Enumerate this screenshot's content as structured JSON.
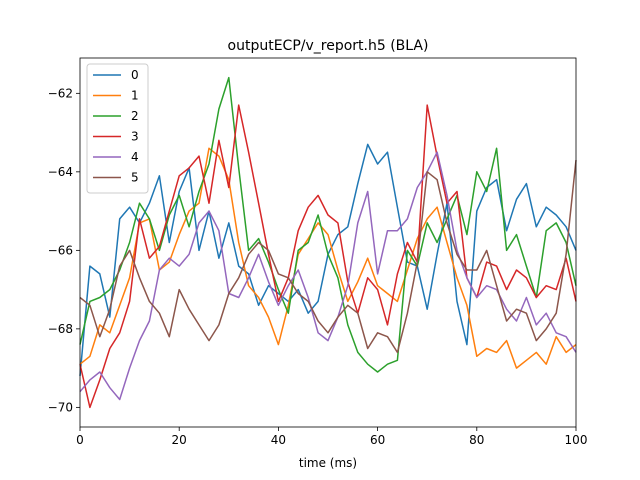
{
  "chart_data": {
    "type": "line",
    "title": "outputECP/v_report.h5 (BLA)",
    "xlabel": "time (ms)",
    "ylabel": "",
    "xlim": [
      0,
      100
    ],
    "ylim": [
      -70.5,
      -61.1
    ],
    "xticks": [
      0,
      20,
      40,
      60,
      80,
      100
    ],
    "yticks": [
      -70,
      -68,
      -66,
      -64,
      -62
    ],
    "xtick_labels": [
      "0",
      "20",
      "40",
      "60",
      "80",
      "100"
    ],
    "ytick_labels": [
      "−70",
      "−68",
      "−66",
      "−64",
      "−62"
    ],
    "grid": false,
    "legend_position": "upper-left",
    "x": [
      0,
      2,
      4,
      6,
      8,
      10,
      12,
      14,
      16,
      18,
      20,
      22,
      24,
      26,
      28,
      30,
      32,
      34,
      36,
      38,
      40,
      42,
      44,
      46,
      48,
      50,
      52,
      54,
      56,
      58,
      60,
      62,
      64,
      66,
      68,
      70,
      72,
      74,
      76,
      78,
      80,
      82,
      84,
      86,
      88,
      90,
      92,
      94,
      96,
      98,
      100
    ],
    "series": [
      {
        "name": "0",
        "color": "#1f77b4",
        "values": [
          -69.2,
          -66.4,
          -66.6,
          -67.7,
          -65.2,
          -64.9,
          -65.3,
          -64.8,
          -64.1,
          -65.8,
          -64.5,
          -63.9,
          -66.0,
          -65.0,
          -66.2,
          -65.3,
          -66.4,
          -66.6,
          -67.4,
          -66.9,
          -67.1,
          -67.3,
          -67.0,
          -67.6,
          -67.3,
          -66.1,
          -65.6,
          -65.4,
          -64.3,
          -63.3,
          -63.8,
          -63.5,
          -64.9,
          -66.3,
          -66.4,
          -67.5,
          -66.1,
          -64.8,
          -67.3,
          -68.4,
          -65.0,
          -64.4,
          -64.2,
          -65.5,
          -64.7,
          -64.3,
          -65.4,
          -64.9,
          -65.1,
          -65.4,
          -66.0
        ]
      },
      {
        "name": "1",
        "color": "#ff7f0e",
        "values": [
          -68.9,
          -68.7,
          -67.9,
          -68.1,
          -67.4,
          -66.7,
          -65.3,
          -65.2,
          -66.5,
          -66.3,
          -65.6,
          -65.0,
          -64.8,
          -63.4,
          -63.6,
          -64.2,
          -65.8,
          -66.9,
          -67.2,
          -67.7,
          -68.4,
          -67.4,
          -66.1,
          -65.7,
          -65.3,
          -65.6,
          -66.5,
          -67.3,
          -66.8,
          -66.2,
          -66.9,
          -67.1,
          -67.3,
          -66.5,
          -65.7,
          -65.2,
          -64.9,
          -65.8,
          -66.7,
          -67.4,
          -68.7,
          -68.5,
          -68.6,
          -68.3,
          -69.0,
          -68.8,
          -68.6,
          -68.9,
          -68.2,
          -68.6,
          -68.4
        ]
      },
      {
        "name": "2",
        "color": "#2ca02c",
        "values": [
          -68.4,
          -67.3,
          -67.2,
          -67.0,
          -66.5,
          -65.8,
          -64.8,
          -65.2,
          -66.0,
          -65.1,
          -64.6,
          -65.4,
          -64.5,
          -63.8,
          -62.4,
          -61.6,
          -63.9,
          -66.0,
          -65.7,
          -66.3,
          -67.0,
          -67.6,
          -66.0,
          -65.8,
          -65.1,
          -66.1,
          -66.7,
          -67.9,
          -68.6,
          -68.9,
          -69.1,
          -68.9,
          -68.8,
          -66.0,
          -66.4,
          -65.3,
          -65.8,
          -65.2,
          -64.6,
          -65.6,
          -64.0,
          -64.5,
          -63.4,
          -66.0,
          -65.6,
          -66.4,
          -67.2,
          -65.5,
          -65.3,
          -65.8,
          -66.9
        ]
      },
      {
        "name": "3",
        "color": "#d62728",
        "values": [
          -68.9,
          -70.0,
          -69.3,
          -68.5,
          -68.1,
          -67.3,
          -65.2,
          -66.2,
          -65.9,
          -65.0,
          -64.1,
          -63.9,
          -63.6,
          -64.8,
          -63.2,
          -64.4,
          -62.3,
          -63.5,
          -64.8,
          -66.1,
          -67.3,
          -66.7,
          -65.5,
          -64.9,
          -64.6,
          -65.1,
          -65.3,
          -66.8,
          -67.6,
          -66.7,
          -67.0,
          -67.9,
          -66.6,
          -65.8,
          -66.3,
          -62.3,
          -63.6,
          -64.8,
          -64.5,
          -66.7,
          -67.2,
          -66.3,
          -66.4,
          -67.0,
          -66.5,
          -66.7,
          -67.2,
          -66.9,
          -67.0,
          -66.2,
          -67.3
        ]
      },
      {
        "name": "4",
        "color": "#9467bd",
        "values": [
          -69.6,
          -69.3,
          -69.1,
          -69.5,
          -69.8,
          -69.0,
          -68.3,
          -67.8,
          -66.5,
          -66.2,
          -66.4,
          -66.1,
          -65.3,
          -65.0,
          -65.5,
          -67.1,
          -67.2,
          -66.7,
          -66.1,
          -66.8,
          -67.4,
          -66.9,
          -66.5,
          -67.2,
          -68.1,
          -68.3,
          -67.7,
          -66.9,
          -65.3,
          -64.5,
          -66.6,
          -65.5,
          -65.5,
          -65.2,
          -64.4,
          -64.0,
          -63.5,
          -64.6,
          -66.0,
          -66.7,
          -67.2,
          -66.9,
          -67.0,
          -67.5,
          -67.8,
          -67.2,
          -67.9,
          -67.6,
          -68.1,
          -68.2,
          -68.6
        ]
      },
      {
        "name": "5",
        "color": "#8c564b",
        "values": [
          -67.2,
          -67.4,
          -68.2,
          -67.5,
          -66.4,
          -66.0,
          -66.7,
          -67.3,
          -67.6,
          -68.2,
          -67.0,
          -67.5,
          -67.9,
          -68.3,
          -67.9,
          -67.1,
          -66.7,
          -66.1,
          -65.8,
          -66.0,
          -66.6,
          -66.7,
          -67.1,
          -67.3,
          -67.8,
          -68.1,
          -67.7,
          -67.4,
          -67.6,
          -68.5,
          -68.1,
          -68.2,
          -68.6,
          -67.6,
          -66.3,
          -64.0,
          -64.2,
          -65.3,
          -66.1,
          -66.5,
          -66.5,
          -66.0,
          -66.9,
          -67.8,
          -67.5,
          -67.6,
          -68.3,
          -68.0,
          -67.6,
          -66.1,
          -63.7
        ]
      }
    ]
  }
}
